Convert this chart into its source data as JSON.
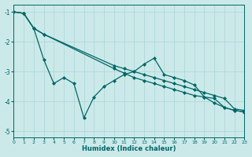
{
  "xlabel": "Humidex (Indice chaleur)",
  "background_color": "#cce9e9",
  "grid_color": "#aad4d4",
  "line_color": "#006666",
  "xlim": [
    0,
    23
  ],
  "ylim": [
    -5.2,
    -0.75
  ],
  "yticks": [
    -5,
    -4,
    -3,
    -2,
    -1
  ],
  "xticks": [
    0,
    1,
    2,
    3,
    4,
    5,
    6,
    7,
    8,
    9,
    10,
    11,
    12,
    13,
    14,
    15,
    16,
    17,
    18,
    19,
    20,
    21,
    22,
    23
  ],
  "s1_x": [
    0,
    1,
    2,
    3,
    4,
    5,
    6,
    7,
    8,
    9,
    10,
    11,
    12,
    13,
    14,
    15,
    16,
    17,
    18,
    19,
    20,
    21,
    22,
    23
  ],
  "s1_y": [
    -1.0,
    -1.05,
    -1.55,
    -2.6,
    -3.4,
    -3.2,
    -3.4,
    -4.55,
    -3.85,
    -3.5,
    -3.3,
    -3.1,
    -3.0,
    -2.75,
    -2.55,
    -3.1,
    -3.2,
    -3.3,
    -3.45,
    -3.85,
    -4.05,
    -4.2,
    -4.3,
    -4.35
  ],
  "s2_x": [
    0,
    1,
    2,
    3,
    10,
    11,
    12,
    13,
    14,
    15,
    16,
    17,
    18,
    19,
    20,
    21,
    22,
    23
  ],
  "s2_y": [
    -1.0,
    -1.05,
    -1.55,
    -1.75,
    -2.8,
    -2.9,
    -3.0,
    -3.1,
    -3.2,
    -3.3,
    -3.4,
    -3.5,
    -3.6,
    -3.7,
    -3.8,
    -3.9,
    -4.25,
    -4.3
  ],
  "s3_x": [
    0,
    1,
    2,
    3,
    10,
    11,
    12,
    13,
    14,
    15,
    16,
    17,
    18,
    19,
    20,
    21,
    22,
    23
  ],
  "s3_y": [
    -1.0,
    -1.05,
    -1.55,
    -1.75,
    -2.9,
    -3.05,
    -3.2,
    -3.3,
    -3.4,
    -3.5,
    -3.6,
    -3.7,
    -3.8,
    -3.85,
    -3.9,
    -4.2,
    -4.3,
    -4.35
  ]
}
